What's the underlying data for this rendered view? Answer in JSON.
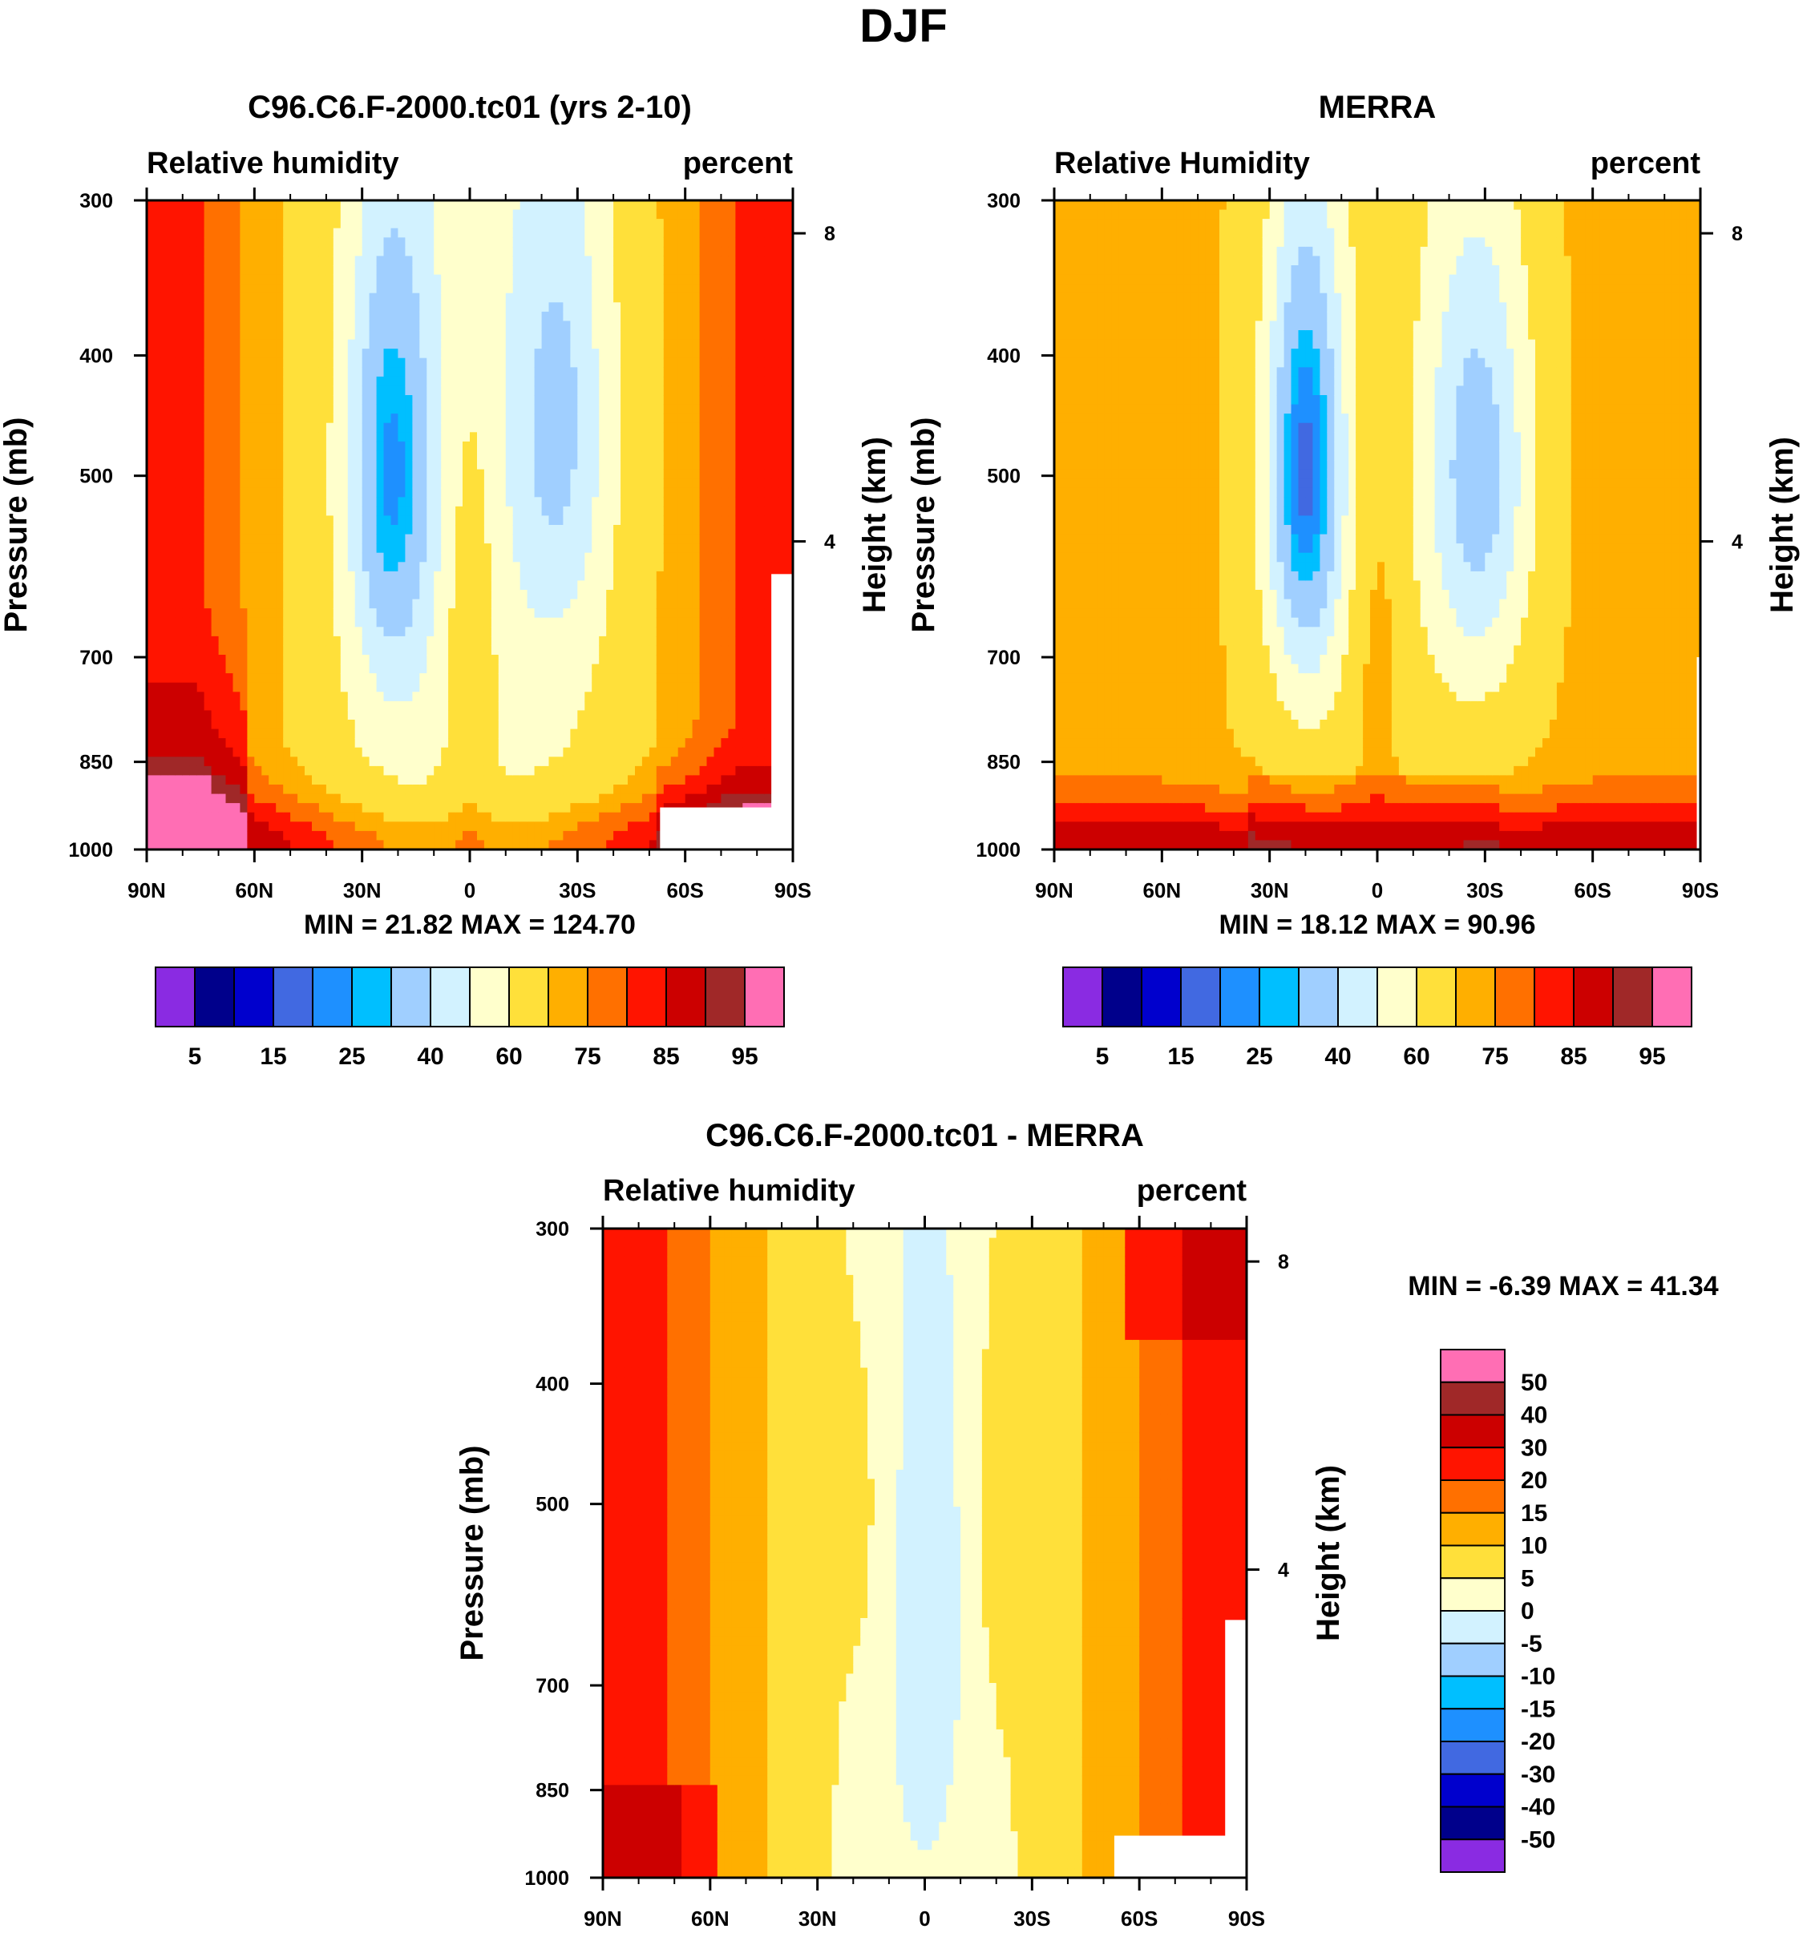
{
  "main_title": "DJF",
  "chart_data": [
    {
      "type": "heatmap",
      "panel": "model",
      "title": "C96.C6.F-2000.tc01 (yrs 2-10)",
      "left_subtitle": "Relative humidity",
      "right_subtitle": "percent",
      "ylabel": "Pressure (mb)",
      "ylabel_right": "Height (km)",
      "x_ticks": [
        "90N",
        "60N",
        "30N",
        "0",
        "30S",
        "60S",
        "90S"
      ],
      "x_range": [
        90,
        -90
      ],
      "y_ticks": [
        "300",
        "400",
        "500",
        "700",
        "850",
        "1000"
      ],
      "y_tick_values": [
        300,
        400,
        500,
        700,
        850,
        1000
      ],
      "y_range": [
        300,
        1000
      ],
      "height_ticks": [
        "8",
        "4"
      ],
      "height_tick_values": [
        8,
        4
      ],
      "min_max_text": "MIN =  21.82  MAX = 124.70",
      "legend_labels": [
        "5",
        "15",
        "25",
        "40",
        "60",
        "75",
        "85",
        "95"
      ],
      "contour_levels": [
        5,
        10,
        15,
        20,
        25,
        30,
        40,
        50,
        60,
        70,
        75,
        80,
        85,
        90,
        95
      ]
    },
    {
      "type": "heatmap",
      "panel": "obs",
      "title": "MERRA",
      "left_subtitle": "Relative Humidity",
      "right_subtitle": "percent",
      "ylabel": "Pressure (mb)",
      "ylabel_right": "Height (km)",
      "x_ticks": [
        "90N",
        "60N",
        "30N",
        "0",
        "30S",
        "60S",
        "90S"
      ],
      "x_range": [
        90,
        -90
      ],
      "y_ticks": [
        "300",
        "400",
        "500",
        "700",
        "850",
        "1000"
      ],
      "y_tick_values": [
        300,
        400,
        500,
        700,
        850,
        1000
      ],
      "y_range": [
        300,
        1000
      ],
      "height_ticks": [
        "8",
        "4"
      ],
      "height_tick_values": [
        8,
        4
      ],
      "min_max_text": "MIN =  18.12  MAX =  90.96",
      "legend_labels": [
        "5",
        "15",
        "25",
        "40",
        "60",
        "75",
        "85",
        "95"
      ],
      "contour_levels": [
        5,
        10,
        15,
        20,
        25,
        30,
        40,
        50,
        60,
        70,
        75,
        80,
        85,
        90,
        95
      ]
    },
    {
      "type": "heatmap",
      "panel": "diff",
      "title": "C96.C6.F-2000.tc01 - MERRA",
      "left_subtitle": "Relative humidity",
      "right_subtitle": "percent",
      "ylabel": "Pressure (mb)",
      "ylabel_right": "Height (km)",
      "x_ticks": [
        "90N",
        "60N",
        "30N",
        "0",
        "30S",
        "60S",
        "90S"
      ],
      "x_range": [
        90,
        -90
      ],
      "y_ticks": [
        "300",
        "400",
        "500",
        "700",
        "850",
        "1000"
      ],
      "y_tick_values": [
        300,
        400,
        500,
        700,
        850,
        1000
      ],
      "y_range": [
        300,
        1000
      ],
      "height_ticks": [
        "8",
        "4"
      ],
      "height_tick_values": [
        8,
        4
      ],
      "min_max_text": "MIN =  -6.39  MAX =  41.34",
      "legend_labels": [
        "50",
        "40",
        "30",
        "20",
        "15",
        "10",
        "5",
        "0",
        "-5",
        "-10",
        "-15",
        "-20",
        "-30",
        "-40",
        "-50"
      ],
      "contour_levels": [
        -50,
        -40,
        -30,
        -20,
        -15,
        -10,
        -5,
        0,
        5,
        10,
        15,
        20,
        30,
        40,
        50
      ]
    }
  ],
  "palettes": {
    "main": [
      "#8A2BE2",
      "#00008B",
      "#0000CD",
      "#4169E1",
      "#1E90FF",
      "#00BFFF",
      "#A0CFFF",
      "#D2F2FF",
      "#FFFFCC",
      "#FFE03A",
      "#FFAF00",
      "#FF7000",
      "#FF1400",
      "#CC0000",
      "#A02828",
      "#FF6EB4"
    ],
    "diff": [
      "#FF6EB4",
      "#A02828",
      "#CC0000",
      "#FF1400",
      "#FF7000",
      "#FFAF00",
      "#FFE03A",
      "#FFFFCC",
      "#D2F2FF",
      "#A0CFFF",
      "#00BFFF",
      "#1E90FF",
      "#4169E1",
      "#0000CD",
      "#00008B",
      "#8A2BE2"
    ]
  }
}
